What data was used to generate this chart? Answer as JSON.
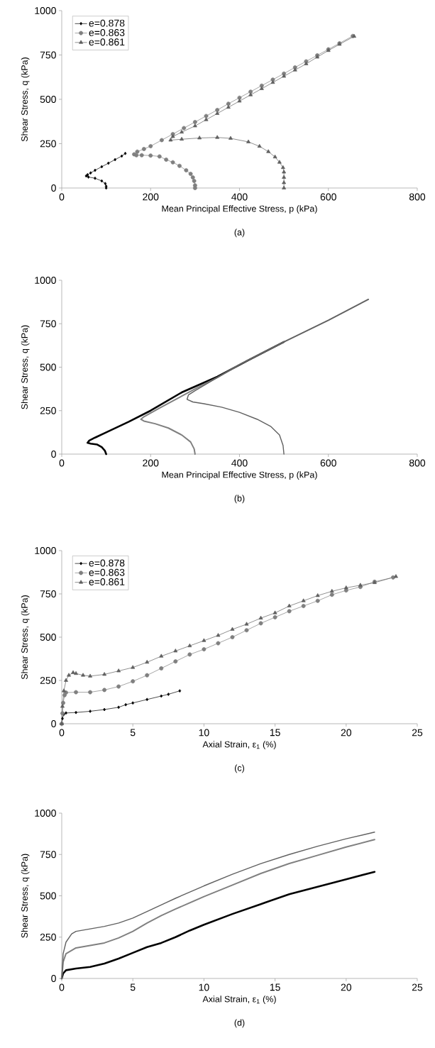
{
  "chart_data": [
    {
      "type": "line",
      "xlabel": "Mean Principal Effective Stress, p (kPa)",
      "ylabel": "Shear Stress, q (kPa)",
      "annotations": [
        "(a)"
      ],
      "xlim": [
        0,
        800
      ],
      "ylim": [
        0,
        1000
      ],
      "xticks": [
        0,
        200,
        400,
        600,
        800
      ],
      "yticks": [
        0,
        250,
        500,
        750,
        1000
      ],
      "legend": "top left",
      "series": [
        {
          "name": "e=0.878",
          "color": "#000000",
          "marker": "diamond",
          "x": [
            100,
            100,
            98,
            90,
            75,
            60,
            55,
            58,
            65,
            75,
            90,
            105,
            120,
            135,
            143
          ],
          "values": [
            0,
            10,
            25,
            40,
            55,
            62,
            68,
            75,
            85,
            100,
            120,
            140,
            160,
            180,
            195
          ]
        },
        {
          "name": "e=0.863",
          "color": "#808080",
          "marker": "circle",
          "x": [
            300,
            300,
            298,
            295,
            290,
            280,
            265,
            250,
            235,
            220,
            200,
            180,
            168,
            163,
            170,
            185,
            200,
            225,
            250,
            275,
            300,
            325,
            350,
            375,
            400,
            425,
            450,
            475,
            500,
            525,
            550,
            575,
            600,
            625,
            655
          ],
          "values": [
            0,
            15,
            40,
            60,
            80,
            100,
            125,
            145,
            160,
            178,
            183,
            185,
            185,
            190,
            205,
            220,
            236,
            270,
            304,
            338,
            372,
            406,
            440,
            475,
            509,
            543,
            577,
            611,
            645,
            680,
            714,
            748,
            782,
            816,
            857
          ]
        },
        {
          "name": "e=0.861",
          "color": "#606060",
          "marker": "triangle",
          "x": [
            500,
            500,
            500,
            500,
            498,
            490,
            480,
            465,
            445,
            420,
            380,
            350,
            310,
            270,
            245,
            250,
            270,
            300,
            325,
            350,
            375,
            400,
            425,
            450,
            475,
            500,
            525,
            550,
            575,
            600,
            625,
            658
          ],
          "values": [
            0,
            30,
            60,
            90,
            115,
            145,
            175,
            205,
            235,
            260,
            280,
            285,
            282,
            275,
            270,
            290,
            315,
            350,
            385,
            420,
            455,
            490,
            525,
            560,
            595,
            630,
            665,
            700,
            738,
            775,
            810,
            855
          ]
        }
      ]
    },
    {
      "type": "line",
      "xlabel": "Mean Principal Effective Stress, p (kPa)",
      "ylabel": "Shear Stress, q (kPa)",
      "annotations": [
        "(b)"
      ],
      "xlim": [
        0,
        800
      ],
      "ylim": [
        0,
        1000
      ],
      "xticks": [
        0,
        200,
        400,
        600,
        800
      ],
      "yticks": [
        0,
        250,
        500,
        750,
        1000
      ],
      "series": [
        {
          "color": "#000000",
          "x": [
            100,
            97,
            90,
            80,
            65,
            58,
            62,
            75,
            100,
            150,
            200,
            270,
            350,
            420,
            500
          ],
          "values": [
            0,
            20,
            40,
            55,
            60,
            65,
            78,
            95,
            125,
            185,
            250,
            355,
            445,
            540,
            645
          ]
        },
        {
          "color": "#808080",
          "x": [
            300,
            298,
            290,
            270,
            240,
            210,
            185,
            178,
            185,
            220,
            260,
            300,
            350,
            400,
            500,
            600,
            690
          ],
          "values": [
            0,
            30,
            70,
            110,
            150,
            175,
            190,
            200,
            215,
            265,
            320,
            375,
            440,
            515,
            645,
            770,
            890
          ]
        },
        {
          "color": "#606060",
          "x": [
            500,
            498,
            490,
            470,
            440,
            400,
            360,
            320,
            295,
            282,
            285,
            300,
            350,
            400,
            500,
            600,
            690
          ],
          "values": [
            0,
            50,
            110,
            160,
            200,
            240,
            270,
            290,
            300,
            315,
            340,
            365,
            440,
            515,
            645,
            770,
            890
          ]
        }
      ]
    },
    {
      "type": "line",
      "xlabel": "Axial Strain, ε$_{1}$ (%)",
      "ylabel": "Shear Stress, q (kPa)",
      "annotations": [
        "(c)"
      ],
      "xlim": [
        0,
        25
      ],
      "ylim": [
        0,
        1000
      ],
      "xticks": [
        0,
        5,
        10,
        15,
        20,
        25
      ],
      "yticks": [
        0,
        250,
        500,
        750,
        1000
      ],
      "legend": "top left",
      "series": [
        {
          "name": "e=0.878",
          "color": "#000000",
          "marker": "diamond",
          "x": [
            0,
            0.05,
            0.15,
            0.3,
            1,
            2,
            3,
            4,
            4.5,
            5,
            6,
            7,
            7.5,
            8.3
          ],
          "values": [
            0,
            30,
            55,
            62,
            65,
            72,
            82,
            95,
            110,
            120,
            140,
            160,
            170,
            190
          ]
        },
        {
          "name": "e=0.863",
          "color": "#808080",
          "marker": "circle",
          "x": [
            0,
            0.05,
            0.1,
            0.2,
            0.3,
            1,
            2,
            3,
            4,
            5,
            6,
            7,
            8,
            9,
            10,
            11,
            12,
            13,
            14,
            15,
            16,
            17,
            18,
            19,
            20,
            21,
            22,
            23.3
          ],
          "values": [
            0,
            60,
            120,
            165,
            180,
            182,
            182,
            195,
            215,
            245,
            280,
            320,
            360,
            400,
            430,
            465,
            500,
            540,
            580,
            615,
            650,
            680,
            710,
            745,
            770,
            790,
            820,
            845
          ]
        },
        {
          "name": "e=0.861",
          "color": "#606060",
          "marker": "triangle",
          "x": [
            0,
            0.05,
            0.15,
            0.3,
            0.5,
            0.8,
            1,
            1.5,
            2,
            3,
            4,
            5,
            6,
            7,
            8,
            9,
            10,
            11,
            12,
            13,
            14,
            15,
            16,
            17,
            18,
            19,
            20,
            21,
            22,
            23.5
          ],
          "values": [
            0,
            100,
            190,
            250,
            280,
            295,
            290,
            280,
            275,
            285,
            305,
            325,
            355,
            390,
            420,
            450,
            480,
            510,
            545,
            575,
            610,
            640,
            680,
            710,
            740,
            765,
            785,
            800,
            815,
            850
          ]
        }
      ]
    },
    {
      "type": "line",
      "xlabel": "Axial Strain, ε$_{1}$ (%)",
      "ylabel": "Shear Stress, q (kPa)",
      "annotations": [
        "(d)"
      ],
      "xlim": [
        0,
        25
      ],
      "ylim": [
        0,
        1000
      ],
      "xticks": [
        0,
        5,
        10,
        15,
        20,
        25
      ],
      "yticks": [
        0,
        250,
        500,
        750,
        1000
      ],
      "series": [
        {
          "color": "#000000",
          "x": [
            0,
            0.1,
            0.3,
            1,
            2,
            3,
            4,
            5,
            6,
            7,
            8,
            9,
            10,
            12,
            14,
            16,
            18,
            20,
            22
          ],
          "values": [
            0,
            30,
            50,
            60,
            70,
            90,
            120,
            155,
            190,
            215,
            250,
            290,
            325,
            390,
            450,
            510,
            555,
            600,
            645
          ]
        },
        {
          "color": "#808080",
          "x": [
            0,
            0.1,
            0.3,
            1,
            2,
            3,
            4,
            5,
            6,
            7,
            8,
            10,
            12,
            14,
            16,
            18,
            20,
            22
          ],
          "values": [
            0,
            100,
            150,
            185,
            200,
            215,
            245,
            285,
            335,
            380,
            420,
            495,
            565,
            635,
            695,
            745,
            795,
            840
          ]
        },
        {
          "color": "#606060",
          "x": [
            0,
            0.1,
            0.3,
            0.7,
            1,
            2,
            3,
            4,
            5,
            6,
            7,
            8,
            10,
            12,
            14,
            16,
            18,
            20,
            22
          ],
          "values": [
            0,
            150,
            220,
            270,
            285,
            300,
            315,
            335,
            365,
            405,
            445,
            485,
            560,
            630,
            695,
            750,
            800,
            845,
            885
          ]
        }
      ]
    }
  ]
}
